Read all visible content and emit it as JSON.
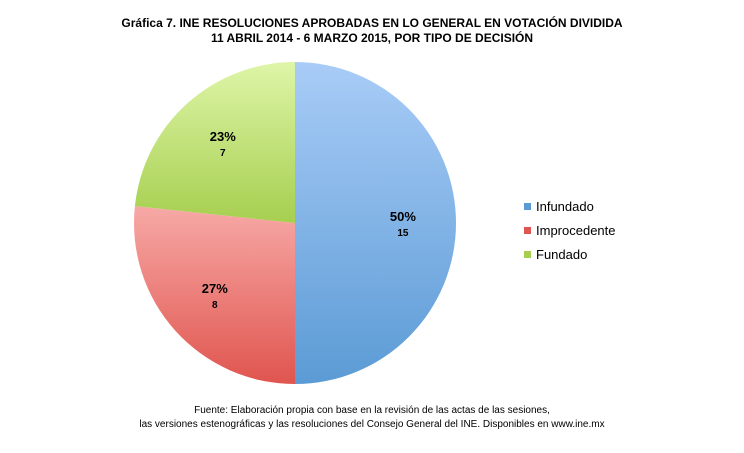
{
  "chart_data": {
    "type": "pie",
    "title": "Gráfica 7. INE RESOLUCIONES APROBADAS EN LO GENERAL EN VOTACIÓN DIVIDIDA",
    "subtitle": "11 ABRIL 2014 - 6 MARZO 2015, POR TIPO DE DECISIÓN",
    "slices": [
      {
        "label": "Infundado",
        "value": 15,
        "percent_label": "50%",
        "color": "#5b9bd5",
        "color_light": "#a9ccf7"
      },
      {
        "label": "Improcedente",
        "value": 8,
        "percent_label": "27%",
        "color": "#e0554f",
        "color_light": "#f7a9a6"
      },
      {
        "label": "Fundado",
        "value": 7,
        "percent_label": "23%",
        "color": "#a6cf4f",
        "color_light": "#def5a8"
      }
    ],
    "legend_position": "right",
    "footer_line1": "Fuente: Elaboración propia con base en la revisión de las actas de las sesiones,",
    "footer_line2": "las versiones estenográficas y las resoluciones del Consejo General del INE. Disponibles en www.ine.mx"
  }
}
